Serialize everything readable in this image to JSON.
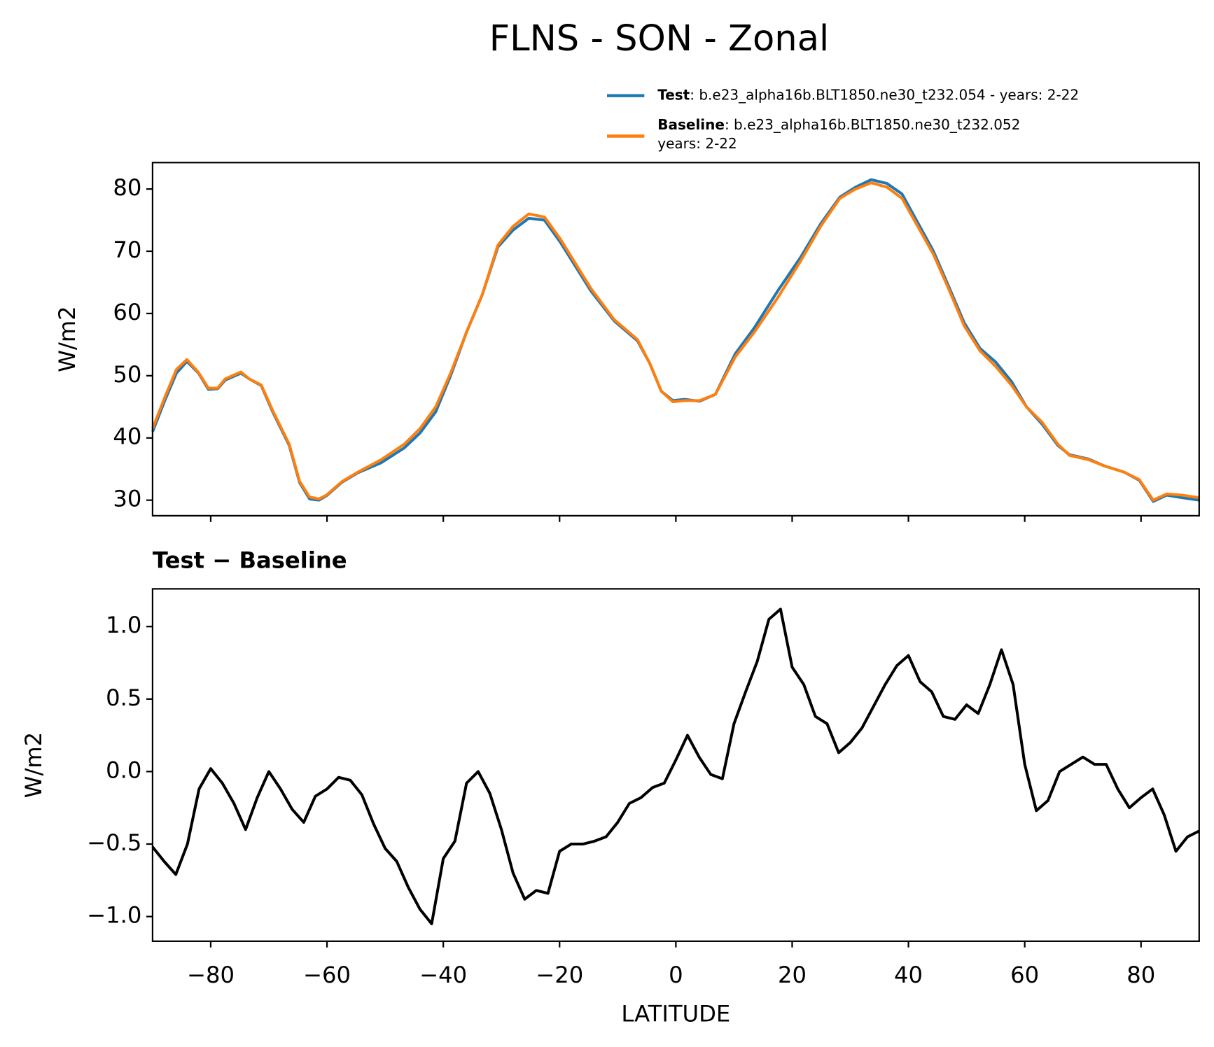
{
  "title": "FLNS - SON - Zonal",
  "chart_data": [
    {
      "type": "line",
      "ylabel": "W/m2",
      "xlim": [
        -90,
        90
      ],
      "xticks": [
        -80,
        -60,
        -40,
        -20,
        0,
        20,
        40,
        60,
        80
      ],
      "ylim": [
        27.5,
        84.25
      ],
      "yticks": [
        30,
        40,
        50,
        60,
        70,
        80
      ],
      "legend": "upper right",
      "x": [
        -90,
        -87.9,
        -85.9,
        -84.1,
        -82.1,
        -80.4,
        -78.8,
        -77.5,
        -74.8,
        -73.4,
        -71.3,
        -69.4,
        -66.5,
        -64.7,
        -63.0,
        -61.4,
        -60.1,
        -57.4,
        -54.7,
        -50.7,
        -46.7,
        -44.0,
        -41.3,
        -38.7,
        -36.0,
        -33.3,
        -30.6,
        -28.0,
        -25.3,
        -22.6,
        -19.9,
        -14.6,
        -10.6,
        -6.6,
        -4.5,
        -2.5,
        -0.5,
        1.5,
        4.1,
        6.8,
        10.2,
        13.5,
        17.5,
        21.5,
        24.9,
        28.2,
        30.9,
        33.6,
        36.3,
        38.9,
        41.6,
        44.3,
        46.9,
        49.6,
        52.3,
        55.0,
        57.7,
        60.3,
        63.0,
        65.7,
        67.7,
        71.0,
        73.7,
        77.1,
        79.7,
        82.1,
        84.4,
        87.1,
        90
      ],
      "series": [
        {
          "name": "Test",
          "label_lines": [
            ": b.e23_alpha16b.BLT1850.ne30_t232.054 - years: 2-22"
          ],
          "color": "#1f77b4",
          "values": [
            41.0,
            46.0,
            50.4,
            52.3,
            50.4,
            47.8,
            47.9,
            49.3,
            50.4,
            49.5,
            48.4,
            44.3,
            38.8,
            32.8,
            30.2,
            30.0,
            30.7,
            32.9,
            34.4,
            36.0,
            38.4,
            40.8,
            44.2,
            50.1,
            57,
            63,
            70.7,
            73.4,
            75.3,
            75.0,
            71.5,
            63.6,
            58.8,
            55.6,
            52.0,
            47.5,
            46.0,
            46.2,
            45.9,
            47.0,
            53.5,
            57.7,
            63.6,
            69.1,
            74.4,
            78.7,
            80.3,
            81.5,
            80.9,
            79.2,
            74.6,
            70.0,
            64.4,
            58.5,
            54.4,
            52.2,
            49.1,
            45.0,
            42.2,
            38.8,
            37.3,
            36.6,
            35.5,
            34.5,
            33.2,
            29.8,
            30.8,
            30.4,
            30.0
          ]
        },
        {
          "name": "Baseline",
          "label_lines": [
            ": b.e23_alpha16b.BLT1850.ne30_t232.052",
            "years: 2-22"
          ],
          "color": "#ff7f0e",
          "values": [
            41.5,
            46.5,
            51,
            52.6,
            50.5,
            48,
            48,
            49.5,
            50.6,
            49.5,
            48.5,
            44.5,
            39,
            33,
            30.5,
            30.2,
            30.8,
            33,
            34.5,
            36.5,
            39,
            41.5,
            45,
            50.5,
            57,
            63,
            71,
            74,
            76,
            75.5,
            72,
            64,
            59,
            55.8,
            52,
            47.5,
            45.8,
            46,
            46,
            47,
            53,
            57,
            62.5,
            68.5,
            74,
            78.5,
            80,
            81,
            80.3,
            78.5,
            74,
            69.5,
            64,
            58,
            54,
            51.5,
            48.5,
            45,
            42.5,
            39,
            37.2,
            36.5,
            35.5,
            34.5,
            33.3,
            30,
            31,
            30.8,
            30.4
          ]
        }
      ]
    },
    {
      "type": "line",
      "title": "Test − Baseline",
      "ylabel": "W/m2",
      "xlabel": "LATITUDE",
      "xlim": [
        -90,
        90
      ],
      "xticks": [
        {
          "value": -80,
          "label": "−80"
        },
        {
          "value": -60,
          "label": "−60"
        },
        {
          "value": -40,
          "label": "−40"
        },
        {
          "value": -20,
          "label": "−20"
        },
        0,
        20,
        40,
        60,
        80
      ],
      "ylim": [
        -1.17,
        1.26
      ],
      "yticks": [
        {
          "value": -1,
          "label": "−1.0"
        },
        {
          "value": -0.5,
          "label": "−0.5"
        },
        {
          "value": 0,
          "label": "0.0"
        },
        {
          "value": 0.5,
          "label": "0.5"
        },
        {
          "value": 1,
          "label": "1.0"
        }
      ],
      "x": [
        -90,
        -88,
        -86,
        -84,
        -82,
        -80,
        -78,
        -76,
        -74,
        -72,
        -70,
        -68,
        -66,
        -64,
        -62,
        -60,
        -58,
        -56,
        -54,
        -52,
        -50,
        -48,
        -46,
        -44,
        -42,
        -40,
        -38,
        -36,
        -34,
        -32,
        -30,
        -28,
        -26,
        -24,
        -22,
        -20,
        -18,
        -16,
        -14,
        -12,
        -10,
        -8,
        -6,
        -4,
        -2,
        0,
        2,
        4,
        6,
        8,
        10,
        12,
        14,
        16,
        18,
        20,
        22,
        24,
        26,
        28,
        30,
        32,
        34,
        36,
        38,
        40,
        42,
        44,
        46,
        48,
        50,
        52,
        54,
        56,
        58,
        60,
        62,
        64,
        66,
        68,
        70,
        72,
        74,
        76,
        78,
        80,
        82,
        84,
        86,
        88,
        90
      ],
      "series": [
        {
          "color": "#000000",
          "values": [
            -0.52,
            -0.62,
            -0.71,
            -0.5,
            -0.12,
            0.02,
            -0.08,
            -0.22,
            -0.4,
            -0.18,
            0.0,
            -0.12,
            -0.26,
            -0.35,
            -0.17,
            -0.12,
            -0.04,
            -0.06,
            -0.16,
            -0.36,
            -0.53,
            -0.62,
            -0.8,
            -0.95,
            -1.05,
            -0.6,
            -0.48,
            -0.08,
            0.0,
            -0.15,
            -0.4,
            -0.7,
            -0.88,
            -0.82,
            -0.84,
            -0.55,
            -0.5,
            -0.5,
            -0.48,
            -0.45,
            -0.35,
            -0.22,
            -0.18,
            -0.11,
            -0.08,
            0.08,
            0.25,
            0.1,
            -0.02,
            -0.05,
            0.33,
            0.55,
            0.76,
            1.05,
            1.12,
            0.72,
            0.6,
            0.38,
            0.33,
            0.13,
            0.2,
            0.3,
            0.45,
            0.6,
            0.73,
            0.8,
            0.62,
            0.55,
            0.38,
            0.36,
            0.46,
            0.4,
            0.6,
            0.84,
            0.6,
            0.05,
            -0.27,
            -0.2,
            0.0,
            0.05,
            0.1,
            0.05,
            0.05,
            -0.12,
            -0.25,
            -0.18,
            -0.12,
            -0.3,
            -0.55,
            -0.45,
            -0.41
          ]
        }
      ]
    }
  ]
}
